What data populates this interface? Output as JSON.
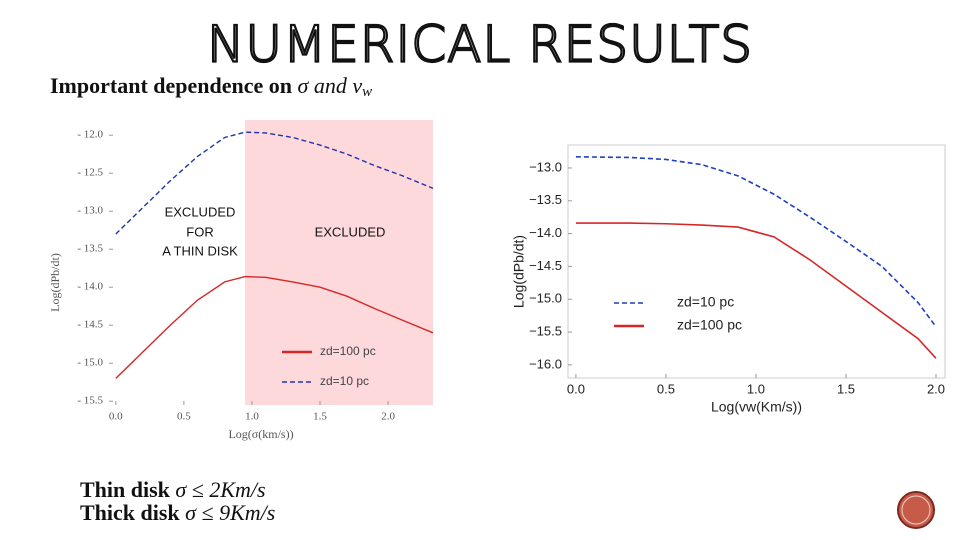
{
  "title": "NUMERICAL RESULTS",
  "subtitle": {
    "text": "Important dependence on",
    "math": "σ and v",
    "sub": "w"
  },
  "notes": [
    {
      "text": "Thin disk",
      "math": "σ ≤ 2Km/s"
    },
    {
      "text": "Thick disk",
      "math": "σ ≤ 9Km/s"
    }
  ],
  "chart_data": [
    {
      "type": "line",
      "xlabel": "Log(σ(km/s))",
      "ylabel": "Log(dPb/dt)",
      "xlim": [
        -0.05,
        2.33
      ],
      "ylim": [
        -15.55,
        -11.8
      ],
      "xticks": [
        {
          "value": 0,
          "label": "0.0"
        },
        0.5,
        {
          "value": 1,
          "label": "1.0"
        },
        1.5,
        {
          "value": 2,
          "label": "2.0"
        }
      ],
      "yticks": [
        {
          "value": -12,
          "label": "- 12.0"
        },
        {
          "value": -12.5,
          "label": "- 12.5"
        },
        {
          "value": -13,
          "label": "- 13.0"
        },
        {
          "value": -13.5,
          "label": "- 13.5"
        },
        {
          "value": -14,
          "label": "- 14.0"
        },
        {
          "value": -14.5,
          "label": "- 14.5"
        },
        {
          "value": -15,
          "label": "- 15.0"
        },
        {
          "value": -15.5,
          "label": "- 15.5"
        }
      ],
      "shaded_x": [
        0.95,
        2.33
      ],
      "shade_color": "#fdd9dc",
      "annotations": [
        "EXCLUDED",
        "FOR",
        "A THIN DISK",
        "EXCLUDED"
      ],
      "x": [
        0,
        0.2,
        0.4,
        0.6,
        0.8,
        0.95,
        1.1,
        1.3,
        1.5,
        1.7,
        1.9,
        2.1,
        2.33
      ],
      "series": [
        {
          "name": "zd=100 pc",
          "color": "#d62728",
          "dashed": false,
          "values": [
            -15.2,
            -14.85,
            -14.5,
            -14.17,
            -13.93,
            -13.86,
            -13.87,
            -13.93,
            -14.0,
            -14.12,
            -14.28,
            -14.43,
            -14.6
          ]
        },
        {
          "name": "zd=10 pc",
          "color": "#2233aa",
          "dashed": true,
          "values": [
            -13.3,
            -12.95,
            -12.6,
            -12.28,
            -12.03,
            -11.96,
            -11.97,
            -12.03,
            -12.13,
            -12.25,
            -12.4,
            -12.53,
            -12.7
          ]
        }
      ]
    },
    {
      "type": "line",
      "xlabel": "Log(vw(Km/s))",
      "ylabel": "Log(dPb/dt)",
      "xlim": [
        -0.044,
        2.05
      ],
      "ylim": [
        -16.2,
        -12.65
      ],
      "xticks": [
        {
          "value": 0,
          "label": "0.0"
        },
        0.5,
        {
          "value": 1,
          "label": "1.0"
        },
        1.5,
        {
          "value": 2,
          "label": "2.0"
        }
      ],
      "yticks": [
        {
          "value": -13,
          "label": "−13.0"
        },
        {
          "value": -13.5,
          "label": "−13.5"
        },
        {
          "value": -14,
          "label": "−14.0"
        },
        {
          "value": -14.5,
          "label": "−14.5"
        },
        {
          "value": -15,
          "label": "−15.0"
        },
        {
          "value": -15.5,
          "label": "−15.5"
        },
        {
          "value": -16,
          "label": "−16.0"
        }
      ],
      "x": [
        0,
        0.3,
        0.5,
        0.7,
        0.9,
        1.1,
        1.3,
        1.5,
        1.7,
        1.9,
        2.0
      ],
      "series": [
        {
          "name": "zd=10 pc",
          "color": "#1f3fbf",
          "dashed": true,
          "values": [
            -12.83,
            -12.84,
            -12.87,
            -12.95,
            -13.12,
            -13.4,
            -13.75,
            -14.12,
            -14.5,
            -15.05,
            -15.42
          ]
        },
        {
          "name": "zd=100 pc",
          "color": "#d62728",
          "dashed": false,
          "values": [
            -13.84,
            -13.84,
            -13.85,
            -13.87,
            -13.9,
            -14.05,
            -14.4,
            -14.8,
            -15.2,
            -15.6,
            -15.9
          ]
        }
      ]
    }
  ]
}
